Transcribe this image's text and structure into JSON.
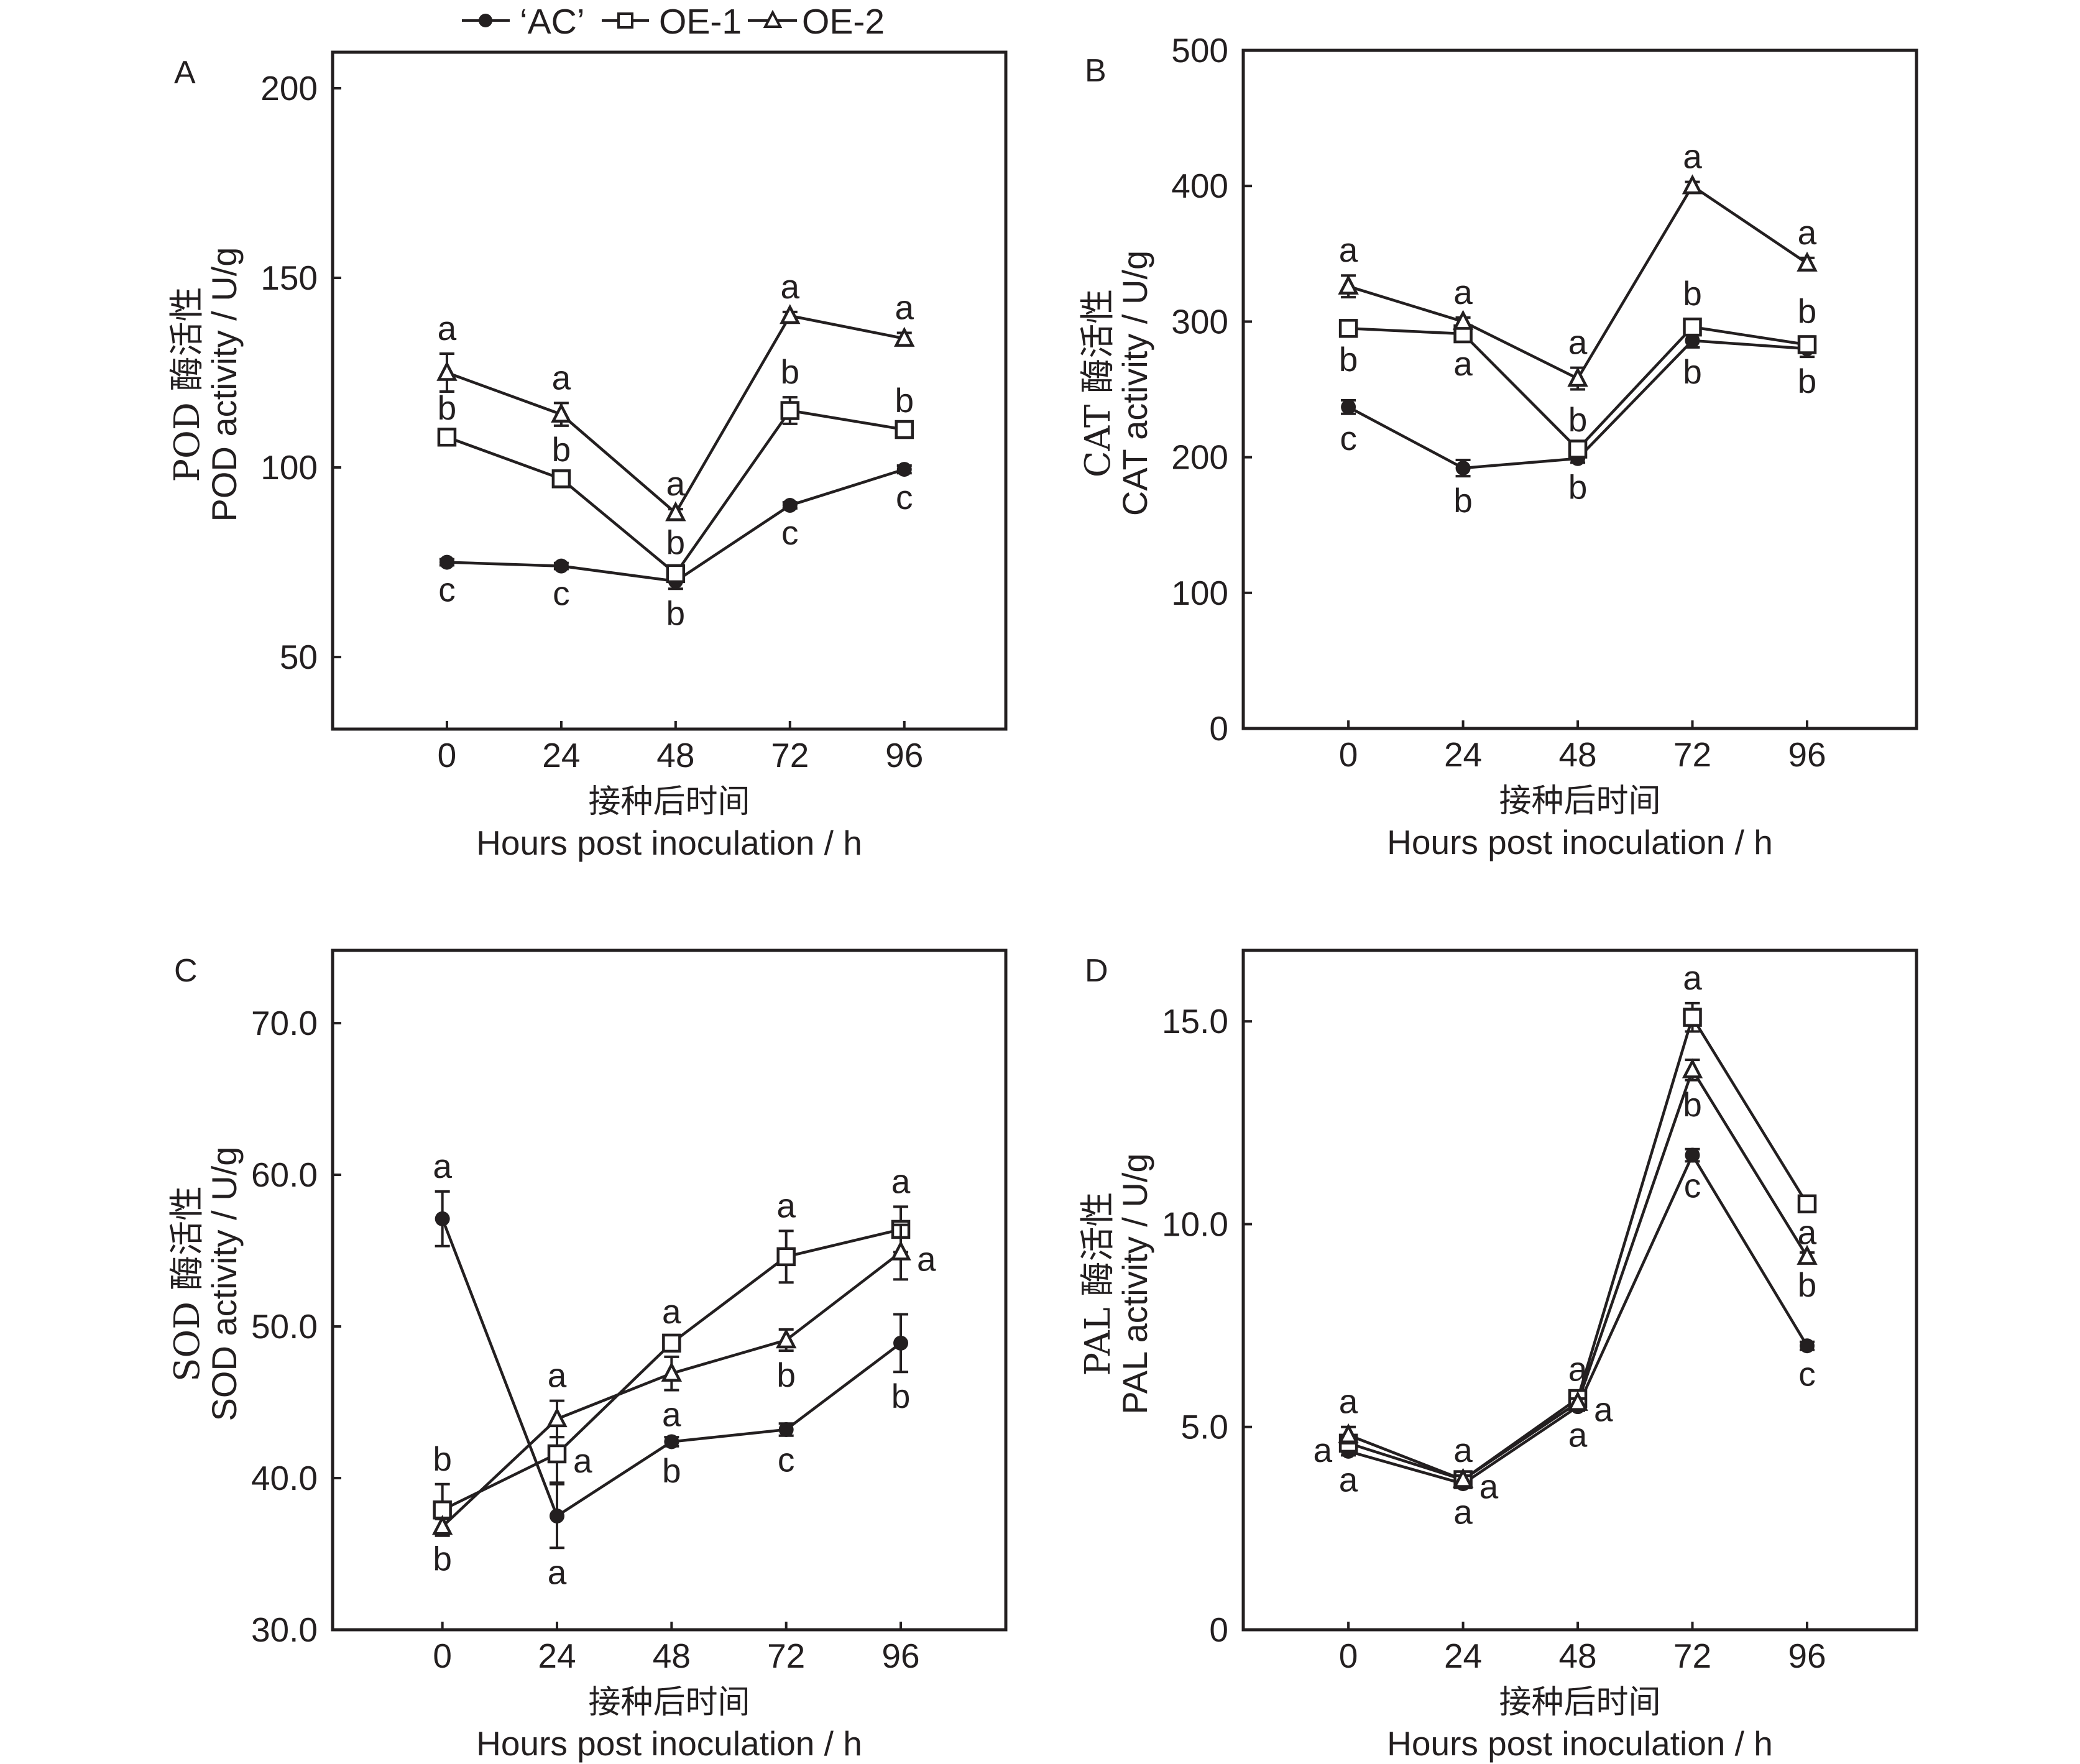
{
  "legend": {
    "entries": [
      {
        "label": "‘AC’",
        "marker": "filled-circle"
      },
      {
        "label": "OE-1",
        "marker": "open-square"
      },
      {
        "label": "OE-2",
        "marker": "open-triangle"
      }
    ]
  },
  "colors": {
    "ink": "#231f20",
    "background": "#ffffff"
  },
  "chart_data": [
    {
      "type": "line",
      "panel": "A",
      "ylabel_cn": "POD 酶活性",
      "ylabel": "POD activity / U/g",
      "xlabel_cn": "接种后时间",
      "xlabel": "Hours post inoculation / h",
      "x": [
        0,
        24,
        48,
        72,
        96
      ],
      "xticks": [
        "0",
        "24",
        "48",
        "72",
        "96"
      ],
      "xlim": [
        -24,
        117.3
      ],
      "ylim": [
        31,
        209.5
      ],
      "yticks": [
        50,
        100,
        150,
        200
      ],
      "ytick_labels": [
        "50",
        "100",
        "150",
        "200"
      ],
      "grid": false,
      "series": [
        {
          "name": "‘AC’",
          "marker": "filled-circle",
          "values": [
            75,
            74,
            70,
            90,
            99.5
          ],
          "err": [
            0.8,
            0.8,
            2,
            0.8,
            1
          ],
          "letters": [
            [
              "c",
              "below"
            ],
            [
              "c",
              "below"
            ],
            [
              "b",
              "below"
            ],
            [
              "c",
              "below"
            ],
            [
              "c",
              "below"
            ]
          ]
        },
        {
          "name": "OE-1",
          "marker": "open-square",
          "values": [
            108,
            97,
            72,
            115,
            110
          ],
          "err": [
            1,
            1,
            1.5,
            3.5,
            1
          ],
          "letters": [
            [
              "b",
              "above"
            ],
            [
              "b",
              "above"
            ],
            [
              "b",
              "above"
            ],
            [
              "b",
              "above"
            ],
            [
              "b",
              "above"
            ]
          ]
        },
        {
          "name": "OE-2",
          "marker": "open-triangle",
          "values": [
            125,
            114,
            88,
            140,
            134
          ],
          "err": [
            5,
            3,
            1,
            1,
            1.5
          ],
          "letters": [
            [
              "a",
              "above"
            ],
            [
              "a",
              "above"
            ],
            [
              "a",
              "above"
            ],
            [
              "a",
              "above"
            ],
            [
              "a",
              "above"
            ]
          ]
        }
      ]
    },
    {
      "type": "line",
      "panel": "B",
      "ylabel_cn": "CAT 酶活性",
      "ylabel": "CAT activity / U/g",
      "xlabel_cn": "接种后时间",
      "xlabel": "Hours post inoculation / h",
      "x": [
        0,
        24,
        48,
        72,
        96
      ],
      "xticks": [
        "0",
        "24",
        "48",
        "72",
        "96"
      ],
      "xlim": [
        -22,
        118.9
      ],
      "ylim": [
        0,
        500
      ],
      "yticks": [
        0,
        100,
        200,
        300,
        400,
        500
      ],
      "ytick_labels": [
        "0",
        "100",
        "200",
        "300",
        "400",
        "500"
      ],
      "grid": false,
      "series": [
        {
          "name": "‘AC’",
          "marker": "filled-circle",
          "values": [
            237,
            192,
            199,
            286,
            280
          ],
          "err": [
            5,
            6,
            3,
            5,
            6
          ],
          "letters": [
            [
              "c",
              "below"
            ],
            [
              "b",
              "below"
            ],
            [
              "b",
              "below"
            ],
            [
              "b",
              "below"
            ],
            [
              "b",
              "below"
            ]
          ]
        },
        {
          "name": "OE-1",
          "marker": "open-square",
          "values": [
            295,
            291,
            206,
            296,
            283
          ],
          "err": [
            5,
            4,
            3,
            6,
            6
          ],
          "letters": [
            [
              "b",
              "below"
            ],
            [
              "a",
              "below"
            ],
            [
              "b",
              "above"
            ],
            [
              "b",
              "above"
            ],
            [
              "b",
              "above"
            ]
          ]
        },
        {
          "name": "OE-2",
          "marker": "open-triangle",
          "values": [
            326,
            300,
            258,
            400,
            343
          ],
          "err": [
            8,
            3,
            8,
            3,
            4
          ],
          "letters": [
            [
              "a",
              "above"
            ],
            [
              "a",
              "above"
            ],
            [
              "a",
              "above"
            ],
            [
              "a",
              "above"
            ],
            [
              "a",
              "above"
            ]
          ]
        }
      ]
    },
    {
      "type": "line",
      "panel": "C",
      "ylabel_cn": "SOD 酶活性",
      "ylabel": "SOD activity / U/g",
      "xlabel_cn": "接种后时间",
      "xlabel": "Hours post inoculation / h",
      "x": [
        0,
        24,
        48,
        72,
        96
      ],
      "xticks": [
        "0",
        "24",
        "48",
        "72",
        "96"
      ],
      "xlim": [
        -23,
        118
      ],
      "ylim": [
        30,
        74.8
      ],
      "yticks": [
        30,
        40,
        50,
        60,
        70
      ],
      "ytick_labels": [
        "30.0",
        "40.0",
        "50.0",
        "60.0",
        "70.0"
      ],
      "grid": false,
      "series": [
        {
          "name": "‘AC’",
          "marker": "filled-circle",
          "values": [
            57.1,
            37.5,
            42.4,
            43.2,
            48.9
          ],
          "err": [
            1.8,
            2.1,
            0.3,
            0.4,
            1.9
          ],
          "letters": [
            [
              "a",
              "above"
            ],
            [
              "a",
              "below"
            ],
            [
              "b",
              "below"
            ],
            [
              "c",
              "below"
            ],
            [
              "b",
              "below"
            ]
          ]
        },
        {
          "name": "OE-1",
          "marker": "open-square",
          "values": [
            37.9,
            41.6,
            48.9,
            54.6,
            56.4
          ],
          "err": [
            1.7,
            1.9,
            0.4,
            1.7,
            1.5
          ],
          "letters": [
            [
              "b",
              "above"
            ],
            [
              "a",
              "right"
            ],
            [
              "a",
              "above"
            ],
            [
              "a",
              "above"
            ],
            [
              "a",
              "above"
            ]
          ]
        },
        {
          "name": "OE-2",
          "marker": "open-triangle",
          "values": [
            36.8,
            43.9,
            46.9,
            49.1,
            54.9
          ],
          "err": [
            0.5,
            1.2,
            1.1,
            0.7,
            1.8
          ],
          "letters": [
            [
              "b",
              "below"
            ],
            [
              "a",
              "above"
            ],
            [
              "a",
              "below"
            ],
            [
              "b",
              "below"
            ],
            [
              "a",
              "right"
            ]
          ]
        }
      ]
    },
    {
      "type": "line",
      "panel": "D",
      "ylabel_cn": "PAL 酶活性",
      "ylabel": "PAL activity / U/g",
      "xlabel_cn": "接种后时间",
      "xlabel": "Hours post inoculation / h",
      "x": [
        0,
        24,
        48,
        72,
        96
      ],
      "xticks": [
        "0",
        "24",
        "48",
        "72",
        "96"
      ],
      "xlim": [
        -22,
        118.9
      ],
      "ylim": [
        0,
        16.75
      ],
      "yticks": [
        0,
        5,
        10,
        15
      ],
      "ytick_labels": [
        "0",
        "5.0",
        "10.0",
        "15.0"
      ],
      "grid": false,
      "series": [
        {
          "name": "‘AC’",
          "marker": "filled-circle",
          "values": [
            4.4,
            3.6,
            5.5,
            11.7,
            7.0
          ],
          "err": [
            0.1,
            0.1,
            0.1,
            0.15,
            0.1
          ],
          "letters": [
            [
              "a",
              "below"
            ],
            [
              "a",
              "below"
            ],
            [
              "a",
              "below"
            ],
            [
              "c",
              "below"
            ],
            [
              "c",
              "below"
            ]
          ]
        },
        {
          "name": "OE-1",
          "marker": "open-square",
          "values": [
            4.6,
            3.7,
            5.7,
            15.1,
            10.5
          ],
          "err": [
            0.1,
            0.1,
            0.1,
            0.35,
            0.1
          ],
          "letters": [
            [
              "a",
              "left"
            ],
            [
              "a",
              "right"
            ],
            [
              "a",
              "above"
            ],
            [
              "a",
              "above"
            ],
            [
              "a",
              "below"
            ]
          ]
        },
        {
          "name": "OE-2",
          "marker": "open-triangle",
          "values": [
            4.8,
            3.7,
            5.6,
            13.8,
            9.2
          ],
          "err": [
            0.2,
            0.1,
            0.1,
            0.25,
            0.1
          ],
          "letters": [
            [
              "a",
              "above"
            ],
            [
              "a",
              "above"
            ],
            [
              "a",
              "right"
            ],
            [
              "b",
              "below"
            ],
            [
              "b",
              "below"
            ]
          ]
        }
      ]
    }
  ]
}
